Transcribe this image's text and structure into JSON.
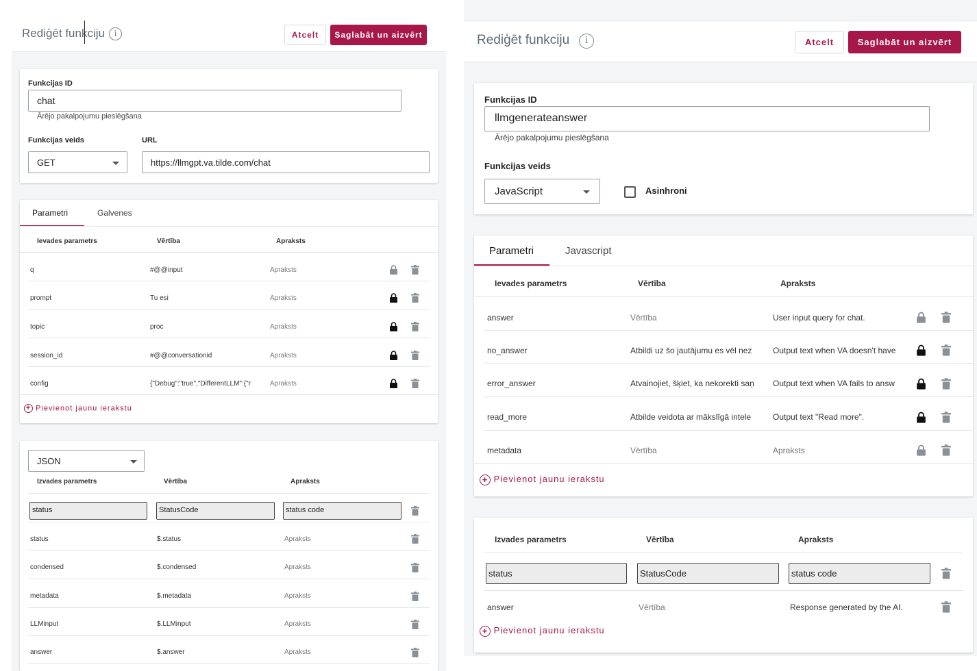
{
  "left": {
    "header": {
      "title": "Rediģēt funkciju",
      "cancel_label": "Atcelt",
      "save_label": "Saglabāt un aizvērt"
    },
    "form": {
      "id_label": "Funkcijas ID",
      "id_value": "chat",
      "id_hint": "Ārējo pakalpojumu pieslēgšana",
      "type_label": "Funkcijas veids",
      "type_value": "GET",
      "url_label": "URL",
      "url_value": "https://llmgpt.va.tilde.com/chat"
    },
    "tabs": [
      "Parametri",
      "Galvenes"
    ],
    "input_headers": [
      "Ievades parametrs",
      "Vērtība",
      "Apraksts"
    ],
    "input_rows": [
      {
        "param": "q",
        "value": "#@@input",
        "desc": "Apraksts",
        "locked": false
      },
      {
        "param": "prompt",
        "value": "Tu esi",
        "desc": "Apraksts",
        "locked": true
      },
      {
        "param": "topic",
        "value": "proc",
        "desc": "Apraksts",
        "locked": true
      },
      {
        "param": "session_id",
        "value": "#@@conversationid",
        "desc": "Apraksts",
        "locked": true
      },
      {
        "param": "config",
        "value": "{\"Debug\":\"true\",\"DifferentLLM\":{\"r",
        "desc": "Apraksts",
        "locked": true
      }
    ],
    "add_label": "Pievienot jaunu ierakstu",
    "output_format": "JSON",
    "output_headers": [
      "Izvades parametrs",
      "Vērtība",
      "Apraksts"
    ],
    "output_edit": {
      "param": "status",
      "value": "StatusCode",
      "desc": "status code"
    },
    "output_rows": [
      {
        "param": "status",
        "value": "$.status",
        "desc": "Apraksts"
      },
      {
        "param": "condensed",
        "value": "$.condensed",
        "desc": "Apraksts"
      },
      {
        "param": "metadata",
        "value": "$.metadata",
        "desc": "Apraksts"
      },
      {
        "param": "LLMinput",
        "value": "$.LLMinput",
        "desc": "Apraksts"
      },
      {
        "param": "answer",
        "value": "$.answer",
        "desc": "Apraksts"
      }
    ]
  },
  "right": {
    "header": {
      "title": "Rediģēt funkciju",
      "cancel_label": "Atcelt",
      "save_label": "Saglabāt un aizvērt"
    },
    "form": {
      "id_label": "Funkcijas ID",
      "id_value": "llmgenerateanswer",
      "id_hint": "Ārējo pakalpojumu pieslēgšana",
      "type_label": "Funkcijas veids",
      "type_value": "JavaScript",
      "async_label": "Asinhroni"
    },
    "tabs": [
      "Parametri",
      "Javascript"
    ],
    "input_headers": [
      "Ievades parametrs",
      "Vērtība",
      "Apraksts"
    ],
    "input_rows": [
      {
        "param": "answer",
        "value": "Vērtība",
        "desc": "User input query for chat.",
        "locked": false,
        "value_muted": true,
        "desc_muted": false
      },
      {
        "param": "no_answer",
        "value": "Atbildi uz šo jautājumu es vēl nez",
        "desc": "Output text when VA doesn't have",
        "locked": true,
        "value_muted": false,
        "desc_muted": false
      },
      {
        "param": "error_answer",
        "value": "Atvainojiet, šķiet, ka nekorekti saņ",
        "desc": "Output text when VA fails to answ",
        "locked": true,
        "value_muted": false,
        "desc_muted": false
      },
      {
        "param": "read_more",
        "value": "Atbilde veidota ar mākslīgā intele",
        "desc": "Output text \"Read more\".",
        "locked": true,
        "value_muted": false,
        "desc_muted": false
      },
      {
        "param": "metadata",
        "value": "Vērtība",
        "desc": "Apraksts",
        "locked": false,
        "value_muted": true,
        "desc_muted": true
      }
    ],
    "add_label": "Pievienot jaunu ierakstu",
    "output_headers": [
      "Izvades parametrs",
      "Vērtība",
      "Apraksts"
    ],
    "output_edit": {
      "param": "status",
      "value": "StatusCode",
      "desc": "status code"
    },
    "output_rows": [
      {
        "param": "answer",
        "value": "Vērtība",
        "desc": "Response generated by the AI."
      }
    ],
    "add_label_2": "Pievienot jaunu ierakstu"
  },
  "icons": {
    "info": "info-icon",
    "lock": "lock-icon",
    "trash": "trash-icon",
    "add": "add-circle-icon",
    "caret": "chevron-down-icon"
  },
  "colors": {
    "accent": "#a8174a",
    "background": "#f4f5f7"
  }
}
